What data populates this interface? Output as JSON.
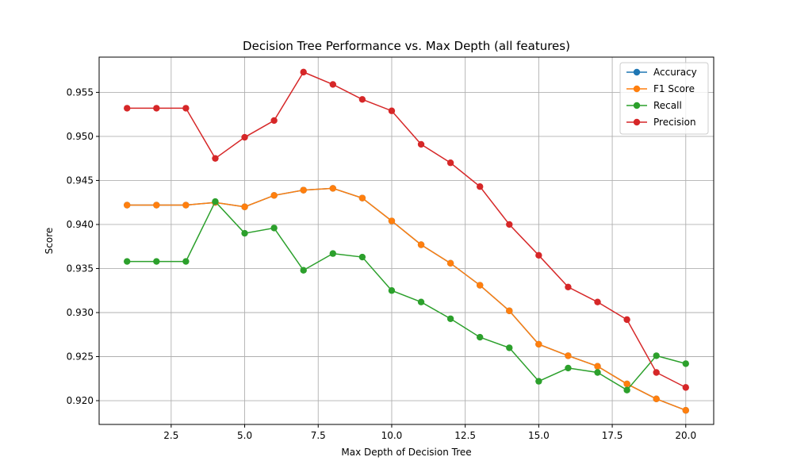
{
  "chart_data": {
    "type": "line",
    "title": "Decision Tree Performance vs. Max Depth (all features)",
    "xlabel": "Max Depth of Decision Tree",
    "ylabel": "Score",
    "xlim": [
      0.05,
      20.95
    ],
    "ylim": [
      0.9173,
      0.959
    ],
    "x_ticks": [
      2.5,
      5.0,
      7.5,
      10.0,
      12.5,
      15.0,
      17.5,
      20.0
    ],
    "x_tick_labels": [
      "2.5",
      "5.0",
      "7.5",
      "10.0",
      "12.5",
      "15.0",
      "17.5",
      "20.0"
    ],
    "y_ticks": [
      0.92,
      0.925,
      0.93,
      0.935,
      0.94,
      0.945,
      0.95,
      0.955
    ],
    "y_tick_labels": [
      "0.920",
      "0.925",
      "0.930",
      "0.935",
      "0.940",
      "0.945",
      "0.950",
      "0.955"
    ],
    "grid": true,
    "legend_position": "top-right",
    "x": [
      1,
      2,
      3,
      4,
      5,
      6,
      7,
      8,
      9,
      10,
      11,
      12,
      13,
      14,
      15,
      16,
      17,
      18,
      19,
      20
    ],
    "series": [
      {
        "name": "Accuracy",
        "color": "#1f77b4",
        "values": [
          0.9422,
          0.9422,
          0.9422,
          0.9425,
          0.942,
          0.9433,
          0.9439,
          0.9441,
          0.943,
          0.9404,
          0.9377,
          0.9356,
          0.9331,
          0.9302,
          0.9264,
          0.9251,
          0.9239,
          0.9219,
          0.9202,
          0.9189
        ]
      },
      {
        "name": "F1 Score",
        "color": "#ff7f0e",
        "values": [
          0.9422,
          0.9422,
          0.9422,
          0.9425,
          0.942,
          0.9433,
          0.9439,
          0.9441,
          0.943,
          0.9404,
          0.9377,
          0.9356,
          0.9331,
          0.9302,
          0.9264,
          0.9251,
          0.9239,
          0.9219,
          0.9202,
          0.9189
        ]
      },
      {
        "name": "Recall",
        "color": "#2ca02c",
        "values": [
          0.9358,
          0.9358,
          0.9358,
          0.9426,
          0.939,
          0.9396,
          0.9348,
          0.9367,
          0.9363,
          0.9325,
          0.9312,
          0.9293,
          0.9272,
          0.926,
          0.9222,
          0.9237,
          0.9232,
          0.9212,
          0.9251,
          0.9242
        ]
      },
      {
        "name": "Precision",
        "color": "#d62728",
        "values": [
          0.9532,
          0.9532,
          0.9532,
          0.9475,
          0.9499,
          0.9518,
          0.9573,
          0.9559,
          0.9542,
          0.9529,
          0.9491,
          0.947,
          0.9443,
          0.94,
          0.9365,
          0.9329,
          0.9312,
          0.9292,
          0.9232,
          0.9215
        ]
      }
    ]
  }
}
